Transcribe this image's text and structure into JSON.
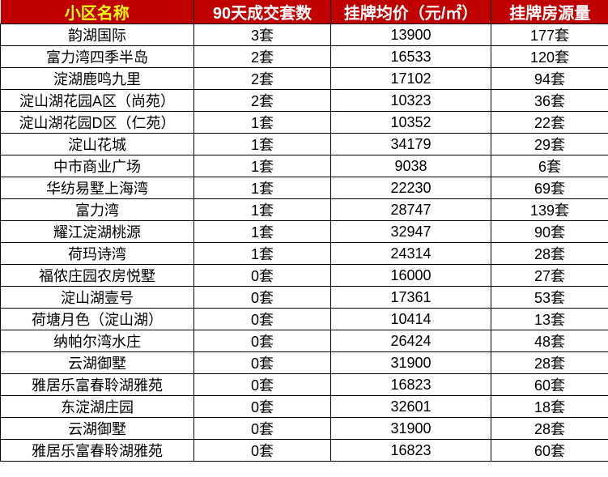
{
  "colors": {
    "header_bg": "#C00000",
    "header_text": "#FFFFFF",
    "header_first_text": "#FFFF00",
    "border": "#000000",
    "body_text": "#000000"
  },
  "chart_data": {
    "type": "table",
    "title": "",
    "columns": [
      "小区名称",
      "90天成交套数",
      "挂牌均价（元/㎡）",
      "挂牌房源量"
    ],
    "rows": [
      [
        "韵湖国际",
        "3套",
        "13900",
        "177套"
      ],
      [
        "富力湾四季半岛",
        "2套",
        "16533",
        "120套"
      ],
      [
        "淀湖鹿鸣九里",
        "2套",
        "17102",
        "94套"
      ],
      [
        "淀山湖花园A区（尚苑）",
        "2套",
        "10323",
        "36套"
      ],
      [
        "淀山湖花园D区（仁苑）",
        "1套",
        "10352",
        "22套"
      ],
      [
        "淀山花城",
        "1套",
        "34179",
        "29套"
      ],
      [
        "中市商业广场",
        "1套",
        "9038",
        "6套"
      ],
      [
        "华纺易墅上海湾",
        "1套",
        "22230",
        "69套"
      ],
      [
        "富力湾",
        "1套",
        "28747",
        "139套"
      ],
      [
        "耀江淀湖桃源",
        "1套",
        "32947",
        "90套"
      ],
      [
        "荷玛诗湾",
        "1套",
        "24314",
        "28套"
      ],
      [
        "福侬庄园农房悦墅",
        "0套",
        "16000",
        "27套"
      ],
      [
        "淀山湖壹号",
        "0套",
        "17361",
        "53套"
      ],
      [
        "荷塘月色（淀山湖）",
        "0套",
        "10414",
        "13套"
      ],
      [
        "纳帕尔湾水庄",
        "0套",
        "26424",
        "48套"
      ],
      [
        "云湖御墅",
        "0套",
        "31900",
        "28套"
      ],
      [
        "雅居乐富春聆湖雅苑",
        "0套",
        "16823",
        "60套"
      ],
      [
        "东淀湖庄园",
        "0套",
        "32601",
        "18套"
      ],
      [
        "云湖御墅",
        "0套",
        "31900",
        "28套"
      ],
      [
        "雅居乐富春聆湖雅苑",
        "0套",
        "16823",
        "60套"
      ]
    ]
  }
}
